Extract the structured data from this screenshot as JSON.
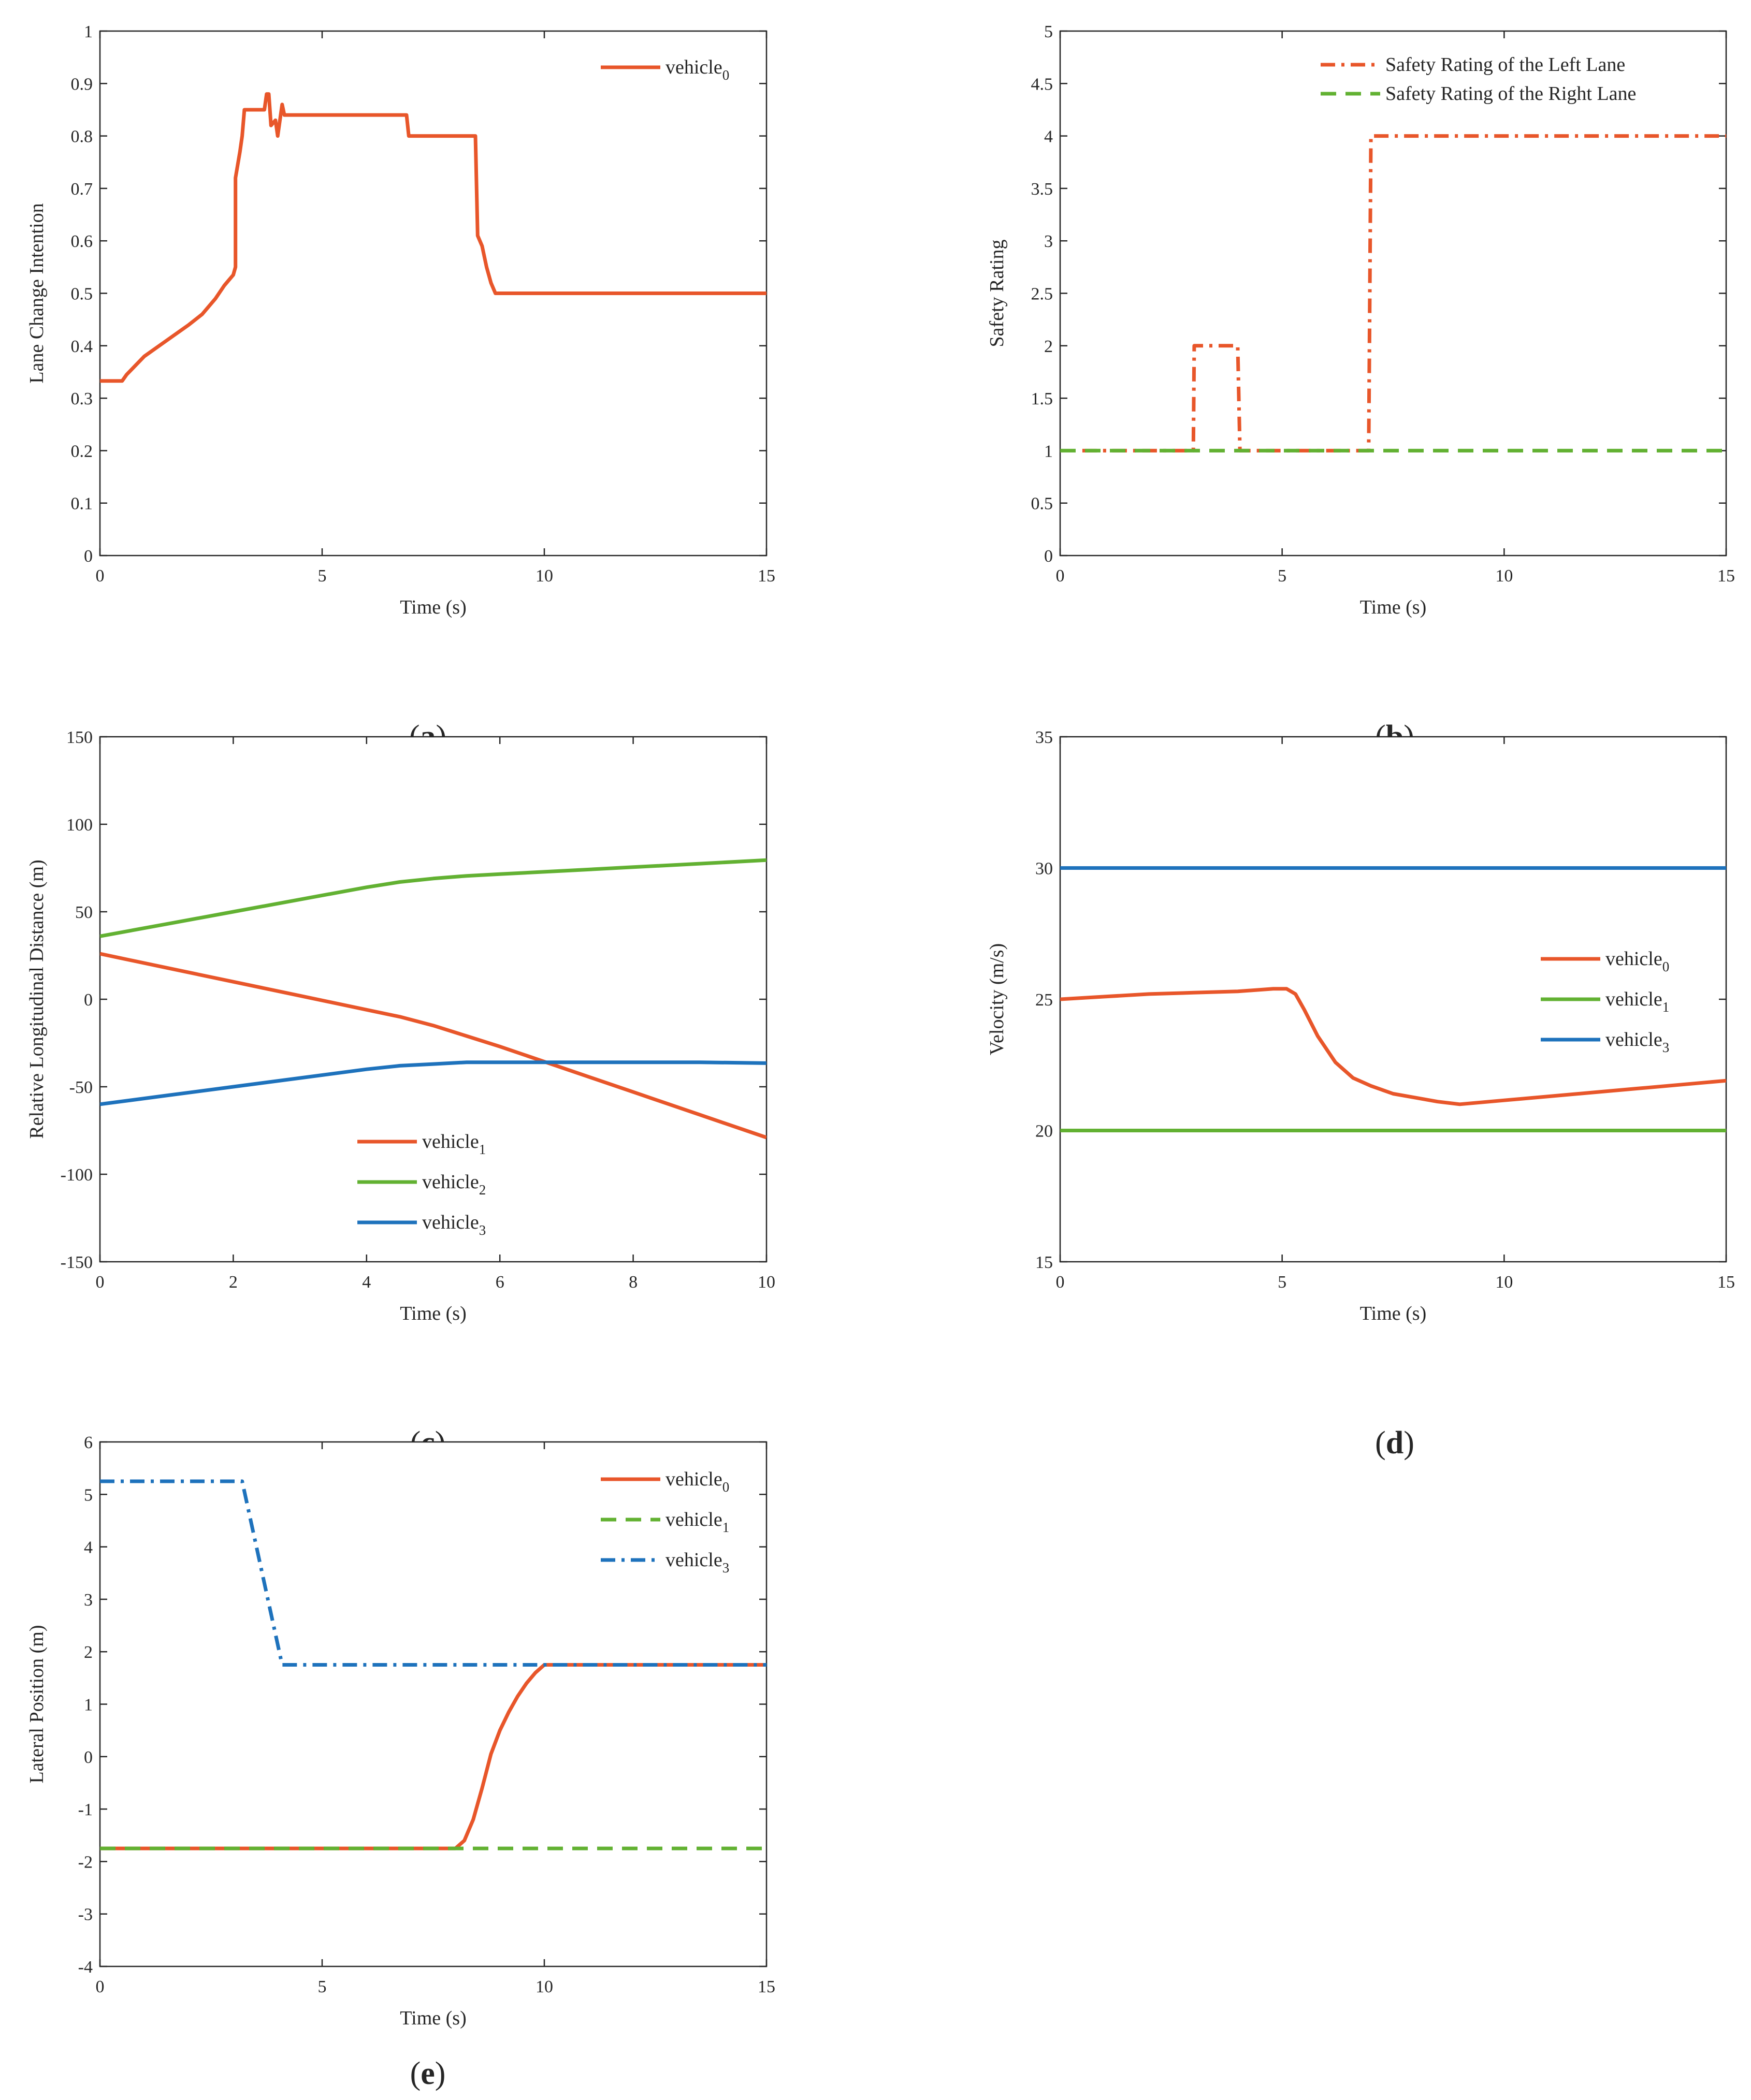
{
  "colors": {
    "orange": "#E8562A",
    "green": "#62B132",
    "blue": "#1E72BC",
    "axis": "#262626"
  },
  "chart_data": [
    {
      "id": "a",
      "type": "line",
      "panel_label": "a",
      "xlabel": "Time (s)",
      "ylabel": "Lane Change Intention",
      "xlim": [
        0,
        15
      ],
      "ylim": [
        0,
        1
      ],
      "xticks": [
        0,
        5,
        10,
        15
      ],
      "xtick_labels": [
        "0",
        "5",
        "10",
        "15"
      ],
      "yticks": [
        0,
        0.1,
        0.2,
        0.3,
        0.4,
        0.5,
        0.6,
        0.7,
        0.8,
        0.9,
        1
      ],
      "ytick_labels": [
        "0",
        "0.1",
        "0.2",
        "0.3",
        "0.4",
        "0.5",
        "0.6",
        "0.7",
        "0.8",
        "0.9",
        "1"
      ],
      "legend_position": "top-right",
      "series": [
        {
          "name": "vehicle",
          "sub": "0",
          "color_key": "orange",
          "style": "solid",
          "points": [
            [
              0,
              0.333
            ],
            [
              0.5,
              0.333
            ],
            [
              0.6,
              0.345
            ],
            [
              1.0,
              0.38
            ],
            [
              1.5,
              0.41
            ],
            [
              2.0,
              0.44
            ],
            [
              2.3,
              0.46
            ],
            [
              2.6,
              0.49
            ],
            [
              2.8,
              0.515
            ],
            [
              3.0,
              0.535
            ],
            [
              3.05,
              0.55
            ],
            [
              3.05,
              0.72
            ],
            [
              3.15,
              0.77
            ],
            [
              3.2,
              0.8
            ],
            [
              3.25,
              0.85
            ],
            [
              3.7,
              0.85
            ],
            [
              3.75,
              0.88
            ],
            [
              3.8,
              0.88
            ],
            [
              3.85,
              0.82
            ],
            [
              3.95,
              0.83
            ],
            [
              4.0,
              0.8
            ],
            [
              4.05,
              0.83
            ],
            [
              4.1,
              0.86
            ],
            [
              4.15,
              0.84
            ],
            [
              6.9,
              0.84
            ],
            [
              6.95,
              0.8
            ],
            [
              8.45,
              0.8
            ],
            [
              8.5,
              0.61
            ],
            [
              8.6,
              0.59
            ],
            [
              8.7,
              0.55
            ],
            [
              8.8,
              0.52
            ],
            [
              8.9,
              0.5
            ],
            [
              15,
              0.5
            ]
          ]
        }
      ]
    },
    {
      "id": "b",
      "type": "line",
      "panel_label": "b",
      "xlabel": "Time (s)",
      "ylabel": "Safety Rating",
      "xlim": [
        0,
        15
      ],
      "ylim": [
        0,
        5
      ],
      "xticks": [
        0,
        5,
        10,
        15
      ],
      "xtick_labels": [
        "0",
        "5",
        "10",
        "15"
      ],
      "yticks": [
        0,
        0.5,
        1,
        1.5,
        2,
        2.5,
        3,
        3.5,
        4,
        4.5,
        5
      ],
      "ytick_labels": [
        "0",
        "0.5",
        "1",
        "1.5",
        "2",
        "2.5",
        "3",
        "3.5",
        "4",
        "4.5",
        "5"
      ],
      "legend_position": "top-right",
      "series": [
        {
          "name": "Safety Rating of the Left Lane",
          "sub": "",
          "color_key": "orange",
          "style": "dashdot",
          "points": [
            [
              0.5,
              1
            ],
            [
              3.0,
              1
            ],
            [
              3.02,
              2
            ],
            [
              4.0,
              2
            ],
            [
              4.05,
              1
            ],
            [
              6.95,
              1
            ],
            [
              7.0,
              4
            ],
            [
              15,
              4
            ]
          ]
        },
        {
          "name": "Safety Rating of the Right Lane",
          "sub": "",
          "color_key": "green",
          "style": "dashed",
          "points": [
            [
              0,
              1
            ],
            [
              15,
              1
            ]
          ]
        }
      ]
    },
    {
      "id": "c",
      "type": "line",
      "panel_label": "c",
      "xlabel": "Time (s)",
      "ylabel": "Relative Longitudinal Distance (m)",
      "xlim": [
        0,
        10
      ],
      "ylim": [
        -150,
        150
      ],
      "xticks": [
        0,
        2,
        4,
        6,
        8,
        10
      ],
      "xtick_labels": [
        "0",
        "2",
        "4",
        "6",
        "8",
        "10"
      ],
      "yticks": [
        -150,
        -100,
        -50,
        0,
        50,
        100,
        150
      ],
      "ytick_labels": [
        "-150",
        "-100",
        "-50",
        "0",
        "50",
        "100",
        "150"
      ],
      "legend_position": "bottom-center",
      "series": [
        {
          "name": "vehicle",
          "sub": "1",
          "color_key": "orange",
          "style": "solid",
          "points": [
            [
              0,
              26
            ],
            [
              1,
              18
            ],
            [
              2,
              10
            ],
            [
              3,
              2
            ],
            [
              4,
              -6
            ],
            [
              4.5,
              -10
            ],
            [
              5,
              -15
            ],
            [
              5.5,
              -21
            ],
            [
              6,
              -27
            ],
            [
              7,
              -40
            ],
            [
              8,
              -53
            ],
            [
              9,
              -66
            ],
            [
              10,
              -79
            ]
          ]
        },
        {
          "name": "vehicle",
          "sub": "2",
          "color_key": "green",
          "style": "solid",
          "points": [
            [
              0,
              36
            ],
            [
              1,
              43
            ],
            [
              2,
              50
            ],
            [
              3,
              57
            ],
            [
              4,
              64
            ],
            [
              4.5,
              67
            ],
            [
              5,
              69
            ],
            [
              5.5,
              70.5
            ],
            [
              6,
              71.5
            ],
            [
              7,
              73.5
            ],
            [
              8,
              75.5
            ],
            [
              9,
              77.5
            ],
            [
              10,
              79.5
            ]
          ]
        },
        {
          "name": "vehicle",
          "sub": "3",
          "color_key": "blue",
          "style": "solid",
          "points": [
            [
              0,
              -60
            ],
            [
              1,
              -55
            ],
            [
              2,
              -50
            ],
            [
              3,
              -45
            ],
            [
              4,
              -40
            ],
            [
              4.5,
              -38
            ],
            [
              5,
              -37
            ],
            [
              5.5,
              -36
            ],
            [
              6,
              -36
            ],
            [
              7,
              -36
            ],
            [
              8,
              -36
            ],
            [
              9,
              -36
            ],
            [
              10,
              -36.5
            ]
          ]
        }
      ]
    },
    {
      "id": "d",
      "type": "line",
      "panel_label": "d",
      "xlabel": "Time (s)",
      "ylabel": "Velocity (m/s)",
      "xlim": [
        0,
        15
      ],
      "ylim": [
        15,
        35
      ],
      "xticks": [
        0,
        5,
        10,
        15
      ],
      "xtick_labels": [
        "0",
        "5",
        "10",
        "15"
      ],
      "yticks": [
        15,
        20,
        25,
        30,
        35
      ],
      "ytick_labels": [
        "15",
        "20",
        "25",
        "30",
        "35"
      ],
      "legend_position": "right-middle",
      "series": [
        {
          "name": "vehicle",
          "sub": "0",
          "color_key": "orange",
          "style": "solid",
          "points": [
            [
              0,
              25
            ],
            [
              1,
              25.1
            ],
            [
              2,
              25.2
            ],
            [
              3,
              25.25
            ],
            [
              4,
              25.3
            ],
            [
              4.8,
              25.4
            ],
            [
              5.1,
              25.4
            ],
            [
              5.3,
              25.2
            ],
            [
              5.5,
              24.6
            ],
            [
              5.8,
              23.6
            ],
            [
              6.2,
              22.6
            ],
            [
              6.6,
              22.0
            ],
            [
              7,
              21.7
            ],
            [
              7.5,
              21.4
            ],
            [
              8,
              21.25
            ],
            [
              8.5,
              21.1
            ],
            [
              9,
              21.0
            ],
            [
              10,
              21.15
            ],
            [
              11,
              21.3
            ],
            [
              12,
              21.45
            ],
            [
              13,
              21.6
            ],
            [
              14,
              21.75
            ],
            [
              15,
              21.9
            ]
          ]
        },
        {
          "name": "vehicle",
          "sub": "1",
          "color_key": "green",
          "style": "solid",
          "points": [
            [
              0,
              20
            ],
            [
              15,
              20
            ]
          ]
        },
        {
          "name": "vehicle",
          "sub": "3",
          "color_key": "blue",
          "style": "solid",
          "points": [
            [
              0,
              30
            ],
            [
              15,
              30
            ]
          ]
        }
      ]
    },
    {
      "id": "e",
      "type": "line",
      "panel_label": "e",
      "xlabel": "Time (s)",
      "ylabel": "Lateral Position (m)",
      "xlim": [
        0,
        15
      ],
      "ylim": [
        -4,
        6
      ],
      "xticks": [
        0,
        5,
        10,
        15
      ],
      "xtick_labels": [
        "0",
        "5",
        "10",
        "15"
      ],
      "yticks": [
        -4,
        -3,
        -2,
        -1,
        0,
        1,
        2,
        3,
        4,
        5,
        6
      ],
      "ytick_labels": [
        "-4",
        "-3",
        "-2",
        "-1",
        "0",
        "1",
        "2",
        "3",
        "4",
        "5",
        "6"
      ],
      "legend_position": "top-right",
      "series": [
        {
          "name": "vehicle",
          "sub": "0",
          "color_key": "orange",
          "style": "solid",
          "points": [
            [
              0,
              -1.75
            ],
            [
              8.0,
              -1.75
            ],
            [
              8.2,
              -1.6
            ],
            [
              8.4,
              -1.2
            ],
            [
              8.6,
              -0.6
            ],
            [
              8.8,
              0.05
            ],
            [
              9.0,
              0.5
            ],
            [
              9.2,
              0.85
            ],
            [
              9.4,
              1.15
            ],
            [
              9.6,
              1.4
            ],
            [
              9.8,
              1.6
            ],
            [
              10.0,
              1.75
            ],
            [
              15,
              1.75
            ]
          ]
        },
        {
          "name": "vehicle",
          "sub": "1",
          "color_key": "green",
          "style": "dashed",
          "points": [
            [
              0,
              -1.75
            ],
            [
              15,
              -1.75
            ]
          ]
        },
        {
          "name": "vehicle",
          "sub": "3",
          "color_key": "blue",
          "style": "dashdot",
          "points": [
            [
              0,
              5.25
            ],
            [
              3.2,
              5.25
            ],
            [
              4.1,
              1.75
            ],
            [
              15,
              1.75
            ]
          ]
        }
      ]
    }
  ]
}
